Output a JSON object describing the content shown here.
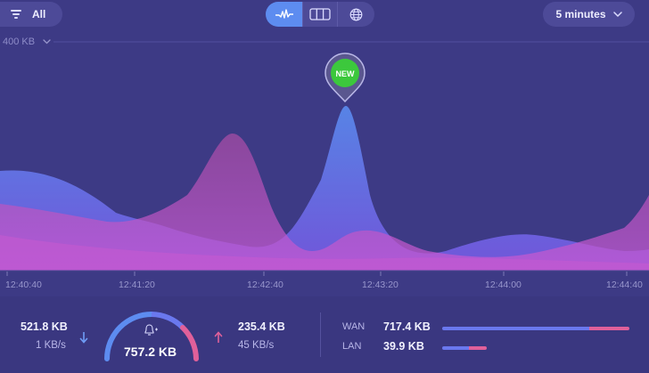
{
  "toolbar": {
    "filter_label": "All",
    "time_range": "5 minutes",
    "views": [
      {
        "name": "activity-view",
        "icon": "waveform-icon",
        "active": true
      },
      {
        "name": "columns-view",
        "icon": "columns-icon",
        "active": false
      },
      {
        "name": "globe-view",
        "icon": "globe-icon",
        "active": false
      }
    ]
  },
  "chart": {
    "scale_label": "400 KB",
    "new_badge": "NEW",
    "time_ticks": [
      "12:40:40",
      "12:41:20",
      "12:42:40",
      "12:43:20",
      "12:44:00",
      "12:44:40"
    ]
  },
  "traffic": {
    "download_total": "521.8 KB",
    "download_rate": "1 KB/s",
    "gauge_total": "757.2 KB",
    "upload_total": "235.4 KB",
    "upload_rate": "45 KB/s",
    "wan_label": "WAN",
    "wan_value": "717.4 KB",
    "lan_label": "LAN",
    "lan_value": "39.9 KB"
  },
  "colors": {
    "background": "#3d3a85",
    "download": "#5d8cf0",
    "upload": "#e0609a",
    "pink_area": "#c85ac8",
    "blue_area": "#6a6ef0",
    "new_badge": "#3cc83c"
  }
}
